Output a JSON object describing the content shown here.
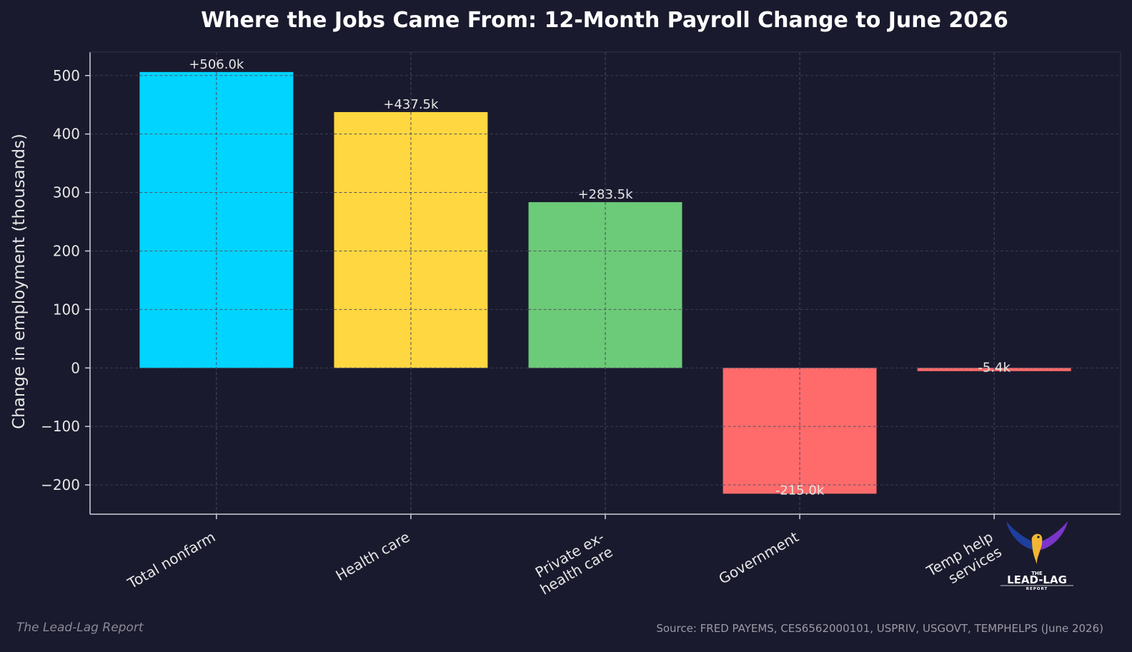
{
  "chart_data": {
    "type": "bar",
    "title": "Where the Jobs Came From: 12-Month Payroll Change to June 2026",
    "xlabel": "",
    "ylabel": "Change in employment (thousands)",
    "categories": [
      "Total nonfarm",
      "Health care",
      "Private ex-\nhealth care",
      "Government",
      "Temp help\nservices"
    ],
    "values": [
      506.0,
      437.5,
      283.5,
      -215.0,
      -5.4
    ],
    "data_labels": [
      "+506.0k",
      "+437.5k",
      "+283.5k",
      "-215.0k",
      "-5.4k"
    ],
    "colors": [
      "#00d4ff",
      "#ffd740",
      "#6ccb78",
      "#ff6b6b",
      "#ff6b6b"
    ],
    "ylim": [
      -250,
      540
    ],
    "yticks": [
      -200,
      -100,
      0,
      100,
      200,
      300,
      400,
      500
    ],
    "ytick_labels": [
      "−200",
      "−100",
      "0",
      "100",
      "200",
      "300",
      "400",
      "500"
    ],
    "grid": true,
    "background": "#1a1a2e"
  },
  "footer": {
    "left": "The Lead-Lag Report",
    "source": "Source: FRED PAYEMS, CES6562000101, USPRIV, USGOVT, TEMPHELPS (June 2026)"
  },
  "logo": {
    "line1": "THE",
    "line2": "LEAD-LAG",
    "line3": "REPORT"
  }
}
